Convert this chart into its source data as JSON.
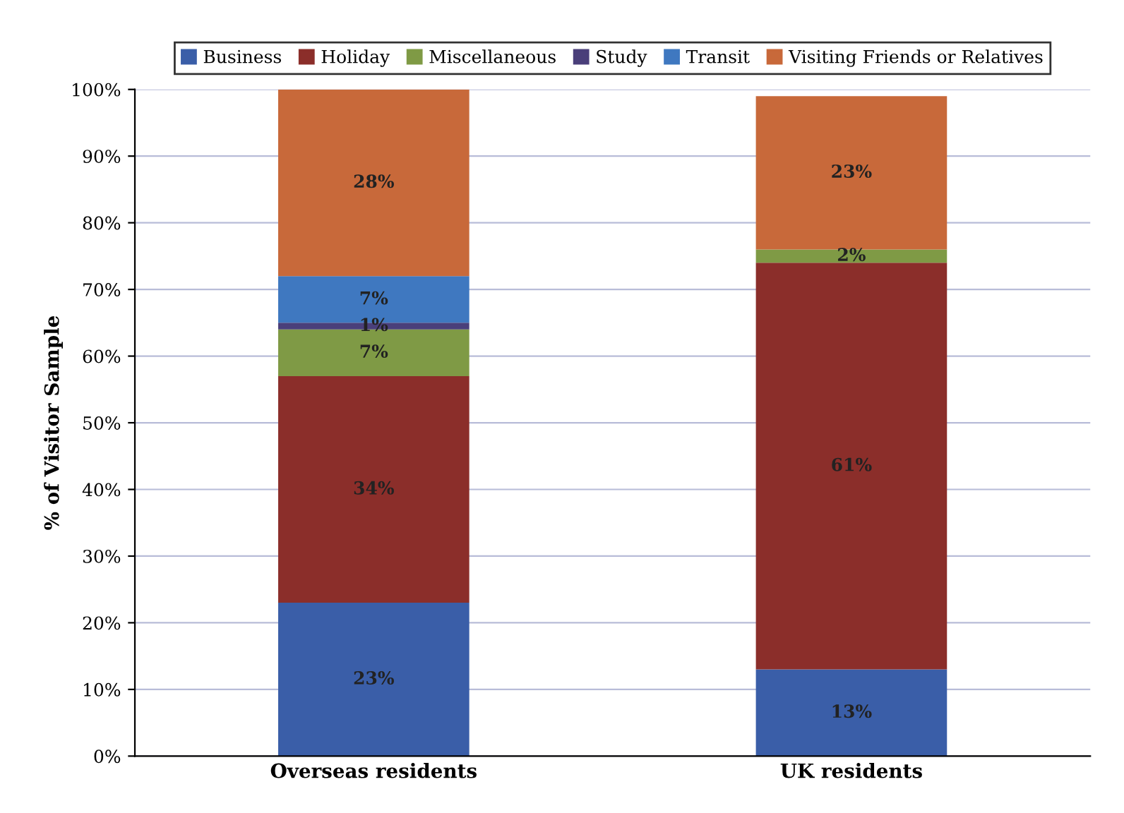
{
  "chart_data": {
    "type": "bar",
    "stacked": true,
    "ylabel": "% of Visitor Sample",
    "categories": [
      "Overseas residents",
      "UK residents"
    ],
    "series": [
      {
        "name": "Business",
        "color": "#3a5ea8",
        "values": [
          23,
          13
        ],
        "value_labels": [
          "23%",
          "13%"
        ]
      },
      {
        "name": "Holiday",
        "color": "#8b2e2a",
        "values": [
          34,
          61
        ],
        "value_labels": [
          "34%",
          "61%"
        ]
      },
      {
        "name": "Miscellaneous",
        "color": "#7f9a45",
        "values": [
          7,
          2
        ],
        "value_labels": [
          "7%",
          "2%"
        ]
      },
      {
        "name": "Study",
        "color": "#4a3f7a",
        "values": [
          1,
          0
        ],
        "value_labels": [
          "1%",
          null
        ]
      },
      {
        "name": "Transit",
        "color": "#3f78c0",
        "values": [
          7,
          0
        ],
        "value_labels": [
          "7%",
          null
        ]
      },
      {
        "name": "Visiting Friends or Relatives",
        "color": "#c8693a",
        "values": [
          28,
          23
        ],
        "value_labels": [
          "28%",
          "23%"
        ]
      }
    ],
    "ylim": [
      0,
      100
    ],
    "yticks": [
      {
        "value": 0,
        "label": "0%"
      },
      {
        "value": 10,
        "label": "10%"
      },
      {
        "value": 20,
        "label": "20%"
      },
      {
        "value": 30,
        "label": "30%"
      },
      {
        "value": 40,
        "label": "40%"
      },
      {
        "value": 50,
        "label": "50%"
      },
      {
        "value": 60,
        "label": "60%"
      },
      {
        "value": 70,
        "label": "70%"
      },
      {
        "value": 80,
        "label": "80%"
      },
      {
        "value": 90,
        "label": "90%"
      },
      {
        "value": 100,
        "label": "100%"
      }
    ],
    "grid": "y",
    "legend": "top"
  }
}
